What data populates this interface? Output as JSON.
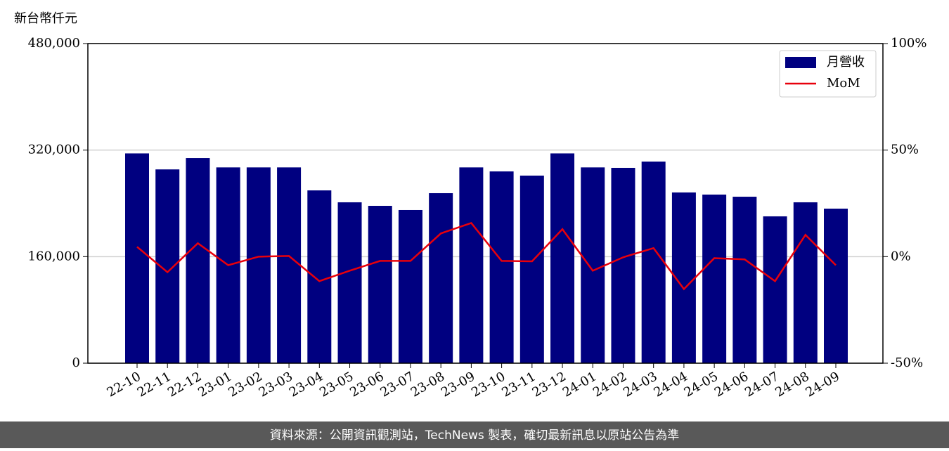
{
  "chart_data": {
    "type": "bar_line",
    "y_axis_label": "新台幣仟元",
    "source_note": "資料來源：公開資訊觀測站，TechNews 製表，確切最新訊息以原站公告為準",
    "categories": [
      "22-10",
      "22-11",
      "22-12",
      "23-01",
      "23-02",
      "23-03",
      "23-04",
      "23-05",
      "23-06",
      "23-07",
      "23-08",
      "23-09",
      "23-10",
      "23-11",
      "23-12",
      "24-01",
      "24-02",
      "24-03",
      "24-04",
      "24-05",
      "24-06",
      "24-07",
      "24-08",
      "24-09"
    ],
    "series": [
      {
        "name": "月營收",
        "type": "bar",
        "color": "#000080",
        "values": [
          315000,
          291000,
          308000,
          294000,
          294000,
          294000,
          259500,
          241600,
          236300,
          230000,
          255300,
          294000,
          288000,
          281700,
          315000,
          294000,
          293300,
          302800,
          256400,
          253200,
          250000,
          220500,
          241600,
          232100
        ]
      },
      {
        "name": "MoM",
        "type": "line",
        "axis": "y2",
        "color": "#e8000b",
        "values": [
          4.6,
          -7.3,
          6.3,
          -4.0,
          0,
          0.3,
          -11.5,
          -6.6,
          -2.0,
          -2.0,
          10.9,
          15.8,
          -2.0,
          -2.2,
          12.9,
          -6.6,
          -0.3,
          4.0,
          -15.2,
          -0.7,
          -1.3,
          -11.5,
          10.2,
          -4.0
        ]
      }
    ],
    "ylim": [
      0,
      480000
    ],
    "yticks": [
      0,
      {
        "value": 160000,
        "label": "160,000"
      },
      {
        "value": 320000,
        "label": "320,000"
      },
      {
        "value": 480000,
        "label": "480,000"
      }
    ],
    "y2lim": [
      -50,
      100
    ],
    "y2ticks": [
      {
        "value": -50,
        "label": "-50%"
      },
      {
        "value": 0,
        "label": "0%"
      },
      {
        "value": 50,
        "label": "50%"
      },
      {
        "value": 100,
        "label": "100%"
      }
    ],
    "grid": true,
    "legend": "upper right"
  }
}
